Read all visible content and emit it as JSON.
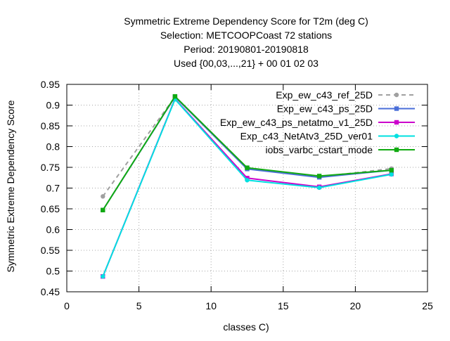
{
  "chart_data": {
    "type": "line",
    "title_lines": [
      "Symmetric Extreme Dependency Score  for T2m (deg C)",
      "Selection: METCOOPCoast     72 stations",
      "Period: 20190801-20190818",
      "Used {00,03,...,21} + 00 01 02 03"
    ],
    "xlabel": "classes C)",
    "ylabel": "Symmetric Extreme Dependency Score",
    "xlim": [
      0,
      25
    ],
    "ylim": [
      0.45,
      0.95
    ],
    "xticks": [
      0,
      5,
      10,
      15,
      20,
      25
    ],
    "yticks": [
      0.45,
      0.5,
      0.55,
      0.6,
      0.65,
      0.7,
      0.75,
      0.8,
      0.85,
      0.9,
      0.95
    ],
    "xtick_labels": [
      "0",
      "5",
      "10",
      "15",
      "20",
      "25"
    ],
    "ytick_labels": [
      "0.45",
      "0.5",
      "0.55",
      "0.6",
      "0.65",
      "0.7",
      "0.75",
      "0.8",
      "0.85",
      "0.9",
      "0.95"
    ],
    "grid": true,
    "legend_position": "top-right",
    "x": [
      2.5,
      7.5,
      12.5,
      17.5,
      22.5
    ],
    "series": [
      {
        "name": "Exp_ew_c43_ref_25D",
        "color": "#a0a0a0",
        "dashed": true,
        "marker": "circle",
        "values": [
          0.68,
          0.92,
          0.748,
          0.727,
          0.747
        ]
      },
      {
        "name": "Exp_ew_c43_ps_25D",
        "color": "#4a6ed8",
        "dashed": false,
        "marker": "square",
        "values": [
          0.647,
          0.92,
          0.746,
          0.726,
          0.743
        ]
      },
      {
        "name": "Exp_ew_c43_ps_netatmo_v1_25D",
        "color": "#cc00cc",
        "dashed": false,
        "marker": "square",
        "values": [
          0.487,
          0.915,
          0.724,
          0.703,
          0.734
        ]
      },
      {
        "name": "Exp_c43_NetAtv3_25D_ver01",
        "color": "#00e0e0",
        "dashed": false,
        "marker": "circle",
        "values": [
          0.487,
          0.914,
          0.719,
          0.701,
          0.733
        ]
      },
      {
        "name": "iobs_varbc_cstart_mode",
        "color": "#11aa11",
        "dashed": false,
        "marker": "square",
        "values": [
          0.647,
          0.921,
          0.749,
          0.729,
          0.743
        ]
      }
    ]
  }
}
